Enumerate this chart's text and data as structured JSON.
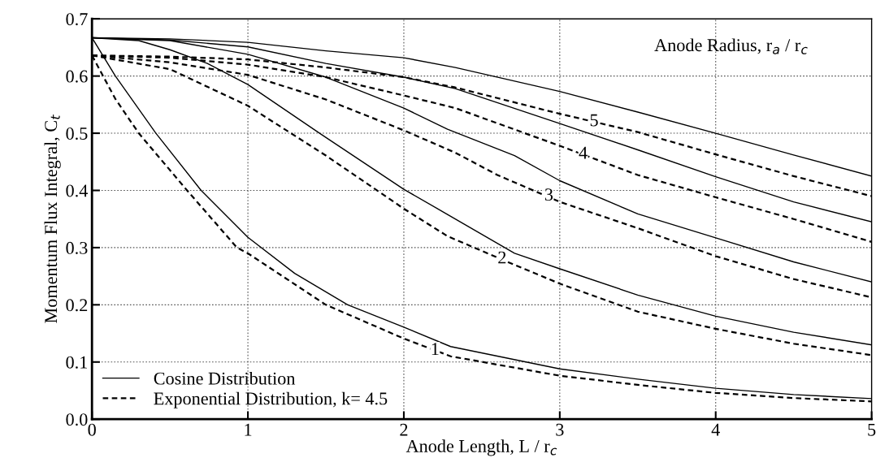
{
  "chart_data": {
    "type": "line",
    "xlabel": "Anode Length, L / r$_{c}$",
    "ylabel": "Momentum Flux Integral, C$_{t}$",
    "xlim": [
      0,
      5
    ],
    "xticks": [
      0,
      1,
      2,
      3,
      4,
      5
    ],
    "ylim": [
      0,
      0.7
    ],
    "yticks": [
      {
        "value": 0,
        "label": "0.0"
      },
      0.1,
      0.2,
      0.3,
      0.4,
      0.5,
      0.6,
      0.7
    ],
    "grid": true,
    "legend": "bottom left",
    "marker": "none",
    "series": [
      {
        "name": "Cosine Distribution",
        "color": "#000000",
        "line_style": "solid",
        "x": [
          0,
          0.15,
          0.41,
          0.7,
          1,
          1.3,
          1.64,
          2,
          2.3,
          3,
          3.5,
          4,
          4.5,
          5
        ],
        "values": [
          0.667,
          0.6,
          0.5,
          0.4,
          0.318,
          0.255,
          0.2,
          0.161,
          0.127,
          0.088,
          0.07,
          0.054,
          0.043,
          0.036
        ]
      },
      {
        "name": "Exponential Distribution, k= 4.5",
        "color": "#000000",
        "line_style": "dashed",
        "x": [
          0,
          0.15,
          0.3,
          0.61,
          0.93,
          1,
          1.5,
          2,
          2.3,
          3,
          3.5,
          4,
          4.5,
          5
        ],
        "values": [
          0.636,
          0.56,
          0.5,
          0.4,
          0.3,
          0.29,
          0.2,
          0.141,
          0.11,
          0.076,
          0.06,
          0.046,
          0.037,
          0.031
        ]
      },
      {
        "color": "#000000",
        "line_style": "solid",
        "x": [
          0,
          0.3,
          0.5,
          0.74,
          1,
          1.46,
          2,
          2.28,
          2.71,
          3,
          3.5,
          4,
          4.5,
          5
        ],
        "values": [
          0.667,
          0.662,
          0.646,
          0.622,
          0.585,
          0.5,
          0.402,
          0.358,
          0.29,
          0.263,
          0.217,
          0.18,
          0.152,
          0.13
        ]
      },
      {
        "color": "#000000",
        "line_style": "dashed",
        "x": [
          0,
          0.5,
          1,
          1.5,
          2,
          2.28,
          2.7,
          3,
          3.5,
          4,
          4.5,
          5
        ],
        "values": [
          0.636,
          0.612,
          0.548,
          0.461,
          0.368,
          0.32,
          0.271,
          0.237,
          0.188,
          0.158,
          0.132,
          0.112
        ]
      },
      {
        "color": "#000000",
        "line_style": "solid",
        "x": [
          0,
          0.5,
          1,
          1.5,
          2,
          2.28,
          2.71,
          3,
          3.5,
          4,
          4.5,
          5
        ],
        "values": [
          0.667,
          0.662,
          0.638,
          0.598,
          0.544,
          0.507,
          0.461,
          0.417,
          0.359,
          0.317,
          0.275,
          0.24
        ]
      },
      {
        "color": "#000000",
        "line_style": "dashed",
        "x": [
          0,
          0.5,
          1,
          1.5,
          2,
          2.33,
          2.6,
          3,
          3.5,
          4,
          4.5,
          5
        ],
        "values": [
          0.636,
          0.624,
          0.602,
          0.559,
          0.505,
          0.466,
          0.427,
          0.38,
          0.334,
          0.285,
          0.245,
          0.213
        ]
      },
      {
        "color": "#000000",
        "line_style": "solid",
        "x": [
          0,
          0.5,
          1,
          1.5,
          2,
          2.33,
          3,
          3.5,
          4,
          4.5,
          5
        ],
        "values": [
          0.667,
          0.663,
          0.651,
          0.622,
          0.598,
          0.578,
          0.517,
          0.471,
          0.424,
          0.38,
          0.345
        ]
      },
      {
        "color": "#000000",
        "line_style": "dashed",
        "x": [
          0,
          0.5,
          1,
          1.5,
          2,
          2.33,
          3,
          3.5,
          4,
          4.5,
          5
        ],
        "values": [
          0.636,
          0.632,
          0.62,
          0.598,
          0.566,
          0.544,
          0.478,
          0.427,
          0.388,
          0.35,
          0.31
        ]
      },
      {
        "color": "#000000",
        "line_style": "solid",
        "x": [
          0,
          0.5,
          1,
          1.5,
          2,
          2.33,
          3,
          3.5,
          4,
          4.5,
          5
        ],
        "values": [
          0.667,
          0.665,
          0.659,
          0.644,
          0.632,
          0.615,
          0.573,
          0.537,
          0.5,
          0.462,
          0.425
        ]
      },
      {
        "color": "#000000",
        "line_style": "dashed",
        "x": [
          0,
          0.5,
          1,
          1.5,
          2,
          2.33,
          3,
          3.5,
          4,
          4.5,
          5
        ],
        "values": [
          0.636,
          0.634,
          0.629,
          0.615,
          0.598,
          0.58,
          0.534,
          0.502,
          0.463,
          0.425,
          0.39
        ]
      }
    ],
    "annotations": [
      {
        "text": "1",
        "x": 2.2,
        "y": 0.12
      },
      {
        "text": "2",
        "x": 2.63,
        "y": 0.28
      },
      {
        "text": "3",
        "x": 2.93,
        "y": 0.39
      },
      {
        "text": "4",
        "x": 3.15,
        "y": 0.463
      },
      {
        "text": "5",
        "x": 3.22,
        "y": 0.52
      },
      "Anode Radius, r$_{a}$ / r$_{c}$"
    ]
  }
}
